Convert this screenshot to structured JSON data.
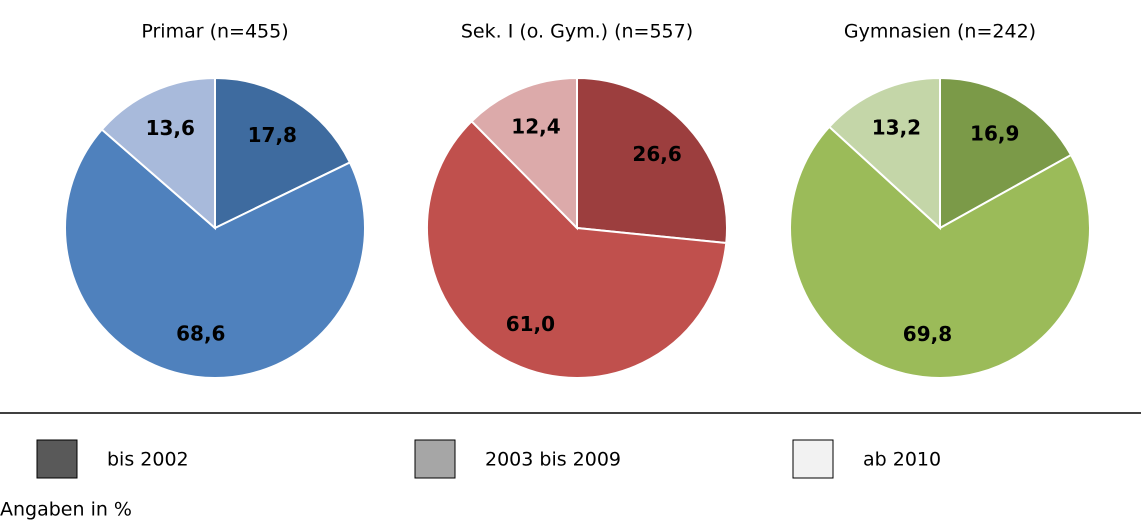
{
  "chart_data": [
    {
      "type": "pie",
      "title": "Primar (n=455)",
      "values": [
        17.8,
        68.6,
        13.6
      ],
      "value_labels": [
        "17,8",
        "68,6",
        "13,6"
      ],
      "colors": [
        "#3e6b9f",
        "#4f81bd",
        "#a8badb"
      ]
    },
    {
      "type": "pie",
      "title": "Sek. I (o. Gym.) (n=557)",
      "values": [
        26.6,
        61.0,
        12.4
      ],
      "value_labels": [
        "26,6",
        "61,0",
        "12,4"
      ],
      "colors": [
        "#9c3e3e",
        "#c0504d",
        "#dcaaaa"
      ]
    },
    {
      "type": "pie",
      "title": "Gymnasien (n=242)",
      "values": [
        16.9,
        69.8,
        13.2
      ],
      "value_labels": [
        "16,9",
        "69,8",
        "13,2"
      ],
      "colors": [
        "#7b9a48",
        "#9bbb59",
        "#c4d6a8"
      ]
    }
  ],
  "legend": [
    {
      "name": "bis 2002",
      "color": "#595959"
    },
    {
      "name": "2003 bis 2009",
      "color": "#a6a6a6"
    },
    {
      "name": "ab 2010",
      "color": "#f2f2f2"
    }
  ],
  "note": "Angaben in %"
}
